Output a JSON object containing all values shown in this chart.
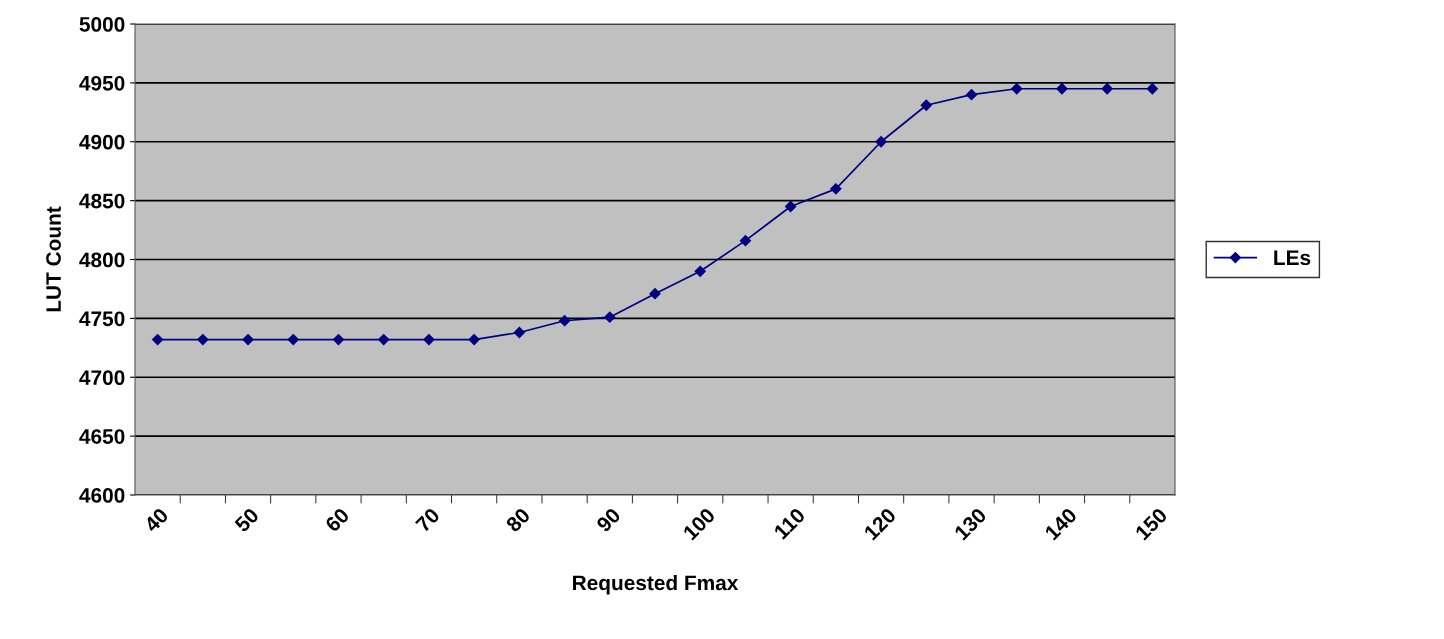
{
  "chart_data": {
    "type": "line",
    "xlabel": "Requested Fmax",
    "ylabel": "LUT Count",
    "categories": [
      "40",
      null,
      "50",
      null,
      "60",
      null,
      "70",
      null,
      "80",
      null,
      "90",
      null,
      "100",
      null,
      "110",
      null,
      "120",
      null,
      "130",
      null,
      "140",
      null,
      "150"
    ],
    "series": [
      {
        "name": "LEs",
        "color": "#000080",
        "values": [
          4732,
          4732,
          4732,
          4732,
          4732,
          4732,
          4732,
          4732,
          4738,
          4748,
          4751,
          4771,
          4790,
          4816,
          4845,
          4860,
          4900,
          4931,
          4940,
          4945,
          4945,
          4945,
          4945
        ]
      }
    ],
    "ylim": [
      4600,
      5000
    ],
    "yticks": [
      4600,
      4650,
      4700,
      4750,
      4800,
      4850,
      4900,
      4950,
      5000
    ],
    "grid": "y",
    "legend": "right",
    "marker": "diamond",
    "line_style": "solid"
  }
}
